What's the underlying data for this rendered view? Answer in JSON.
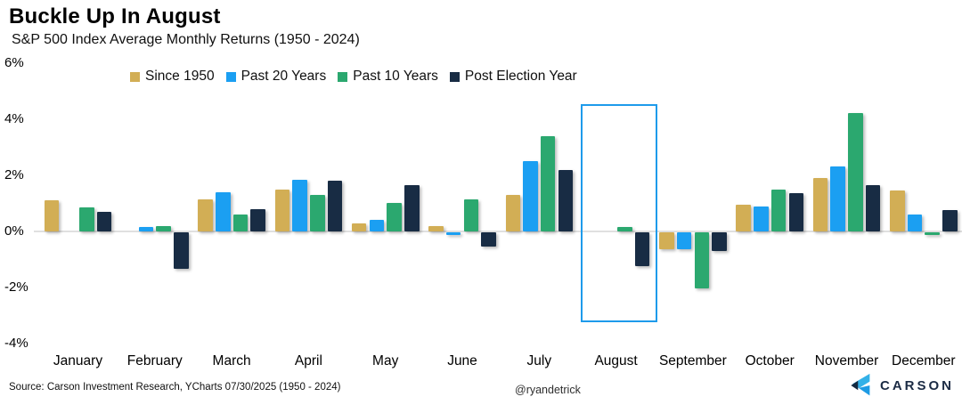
{
  "header": {
    "title": "Buckle Up In August",
    "subtitle": "S&P 500 Index Average Monthly Returns (1950 - 2024)"
  },
  "footer": {
    "source": "Source: Carson Investment Research, YCharts 07/30/2025 (1950 - 2024)",
    "handle": "@ryandetrick",
    "brand": "CARSON"
  },
  "chart_data": {
    "type": "bar",
    "title": "Buckle Up In August",
    "subtitle": "S&P 500 Index Average Monthly Returns (1950 - 2024)",
    "categories": [
      "January",
      "February",
      "March",
      "April",
      "May",
      "June",
      "July",
      "August",
      "September",
      "October",
      "November",
      "December"
    ],
    "series": [
      {
        "name": "Since 1950",
        "color": "#d2ae55",
        "values": [
          1.1,
          0.0,
          1.15,
          1.5,
          0.3,
          0.2,
          1.3,
          0.0,
          -0.6,
          0.95,
          1.9,
          1.45
        ]
      },
      {
        "name": "Past 20 Years",
        "color": "#1b9ff2",
        "values": [
          0.0,
          0.15,
          1.4,
          1.85,
          0.4,
          -0.1,
          2.5,
          0.0,
          -0.6,
          0.9,
          2.3,
          0.6
        ]
      },
      {
        "name": "Past 10 Years",
        "color": "#2ba86f",
        "values": [
          0.85,
          0.2,
          0.6,
          1.3,
          1.0,
          1.15,
          3.4,
          0.15,
          -2.0,
          1.5,
          4.2,
          -0.1
        ]
      },
      {
        "name": "Post Election Year",
        "color": "#182c44",
        "values": [
          0.7,
          -1.3,
          0.8,
          1.8,
          1.65,
          -0.5,
          2.2,
          -1.2,
          -0.65,
          1.35,
          1.65,
          0.75
        ]
      }
    ],
    "ylabel": "",
    "xlabel": "",
    "ylim": [
      -4,
      6
    ],
    "yticks": [
      "6%",
      "4%",
      "2%",
      "0%",
      "-2%",
      "-4%"
    ],
    "ytick_values": [
      6,
      4,
      2,
      0,
      -2,
      -4
    ],
    "grid": false,
    "legend_position": "top",
    "highlight": {
      "label": "August",
      "month_index": 7,
      "color": "#1e9beb"
    },
    "zero_line_color": "#e0e0e0"
  },
  "logo_colors": {
    "light_blue": "#33b1e8",
    "mid_blue": "#1e9be4",
    "dark_navy": "#142940",
    "wordmark": "#1b2b44"
  }
}
